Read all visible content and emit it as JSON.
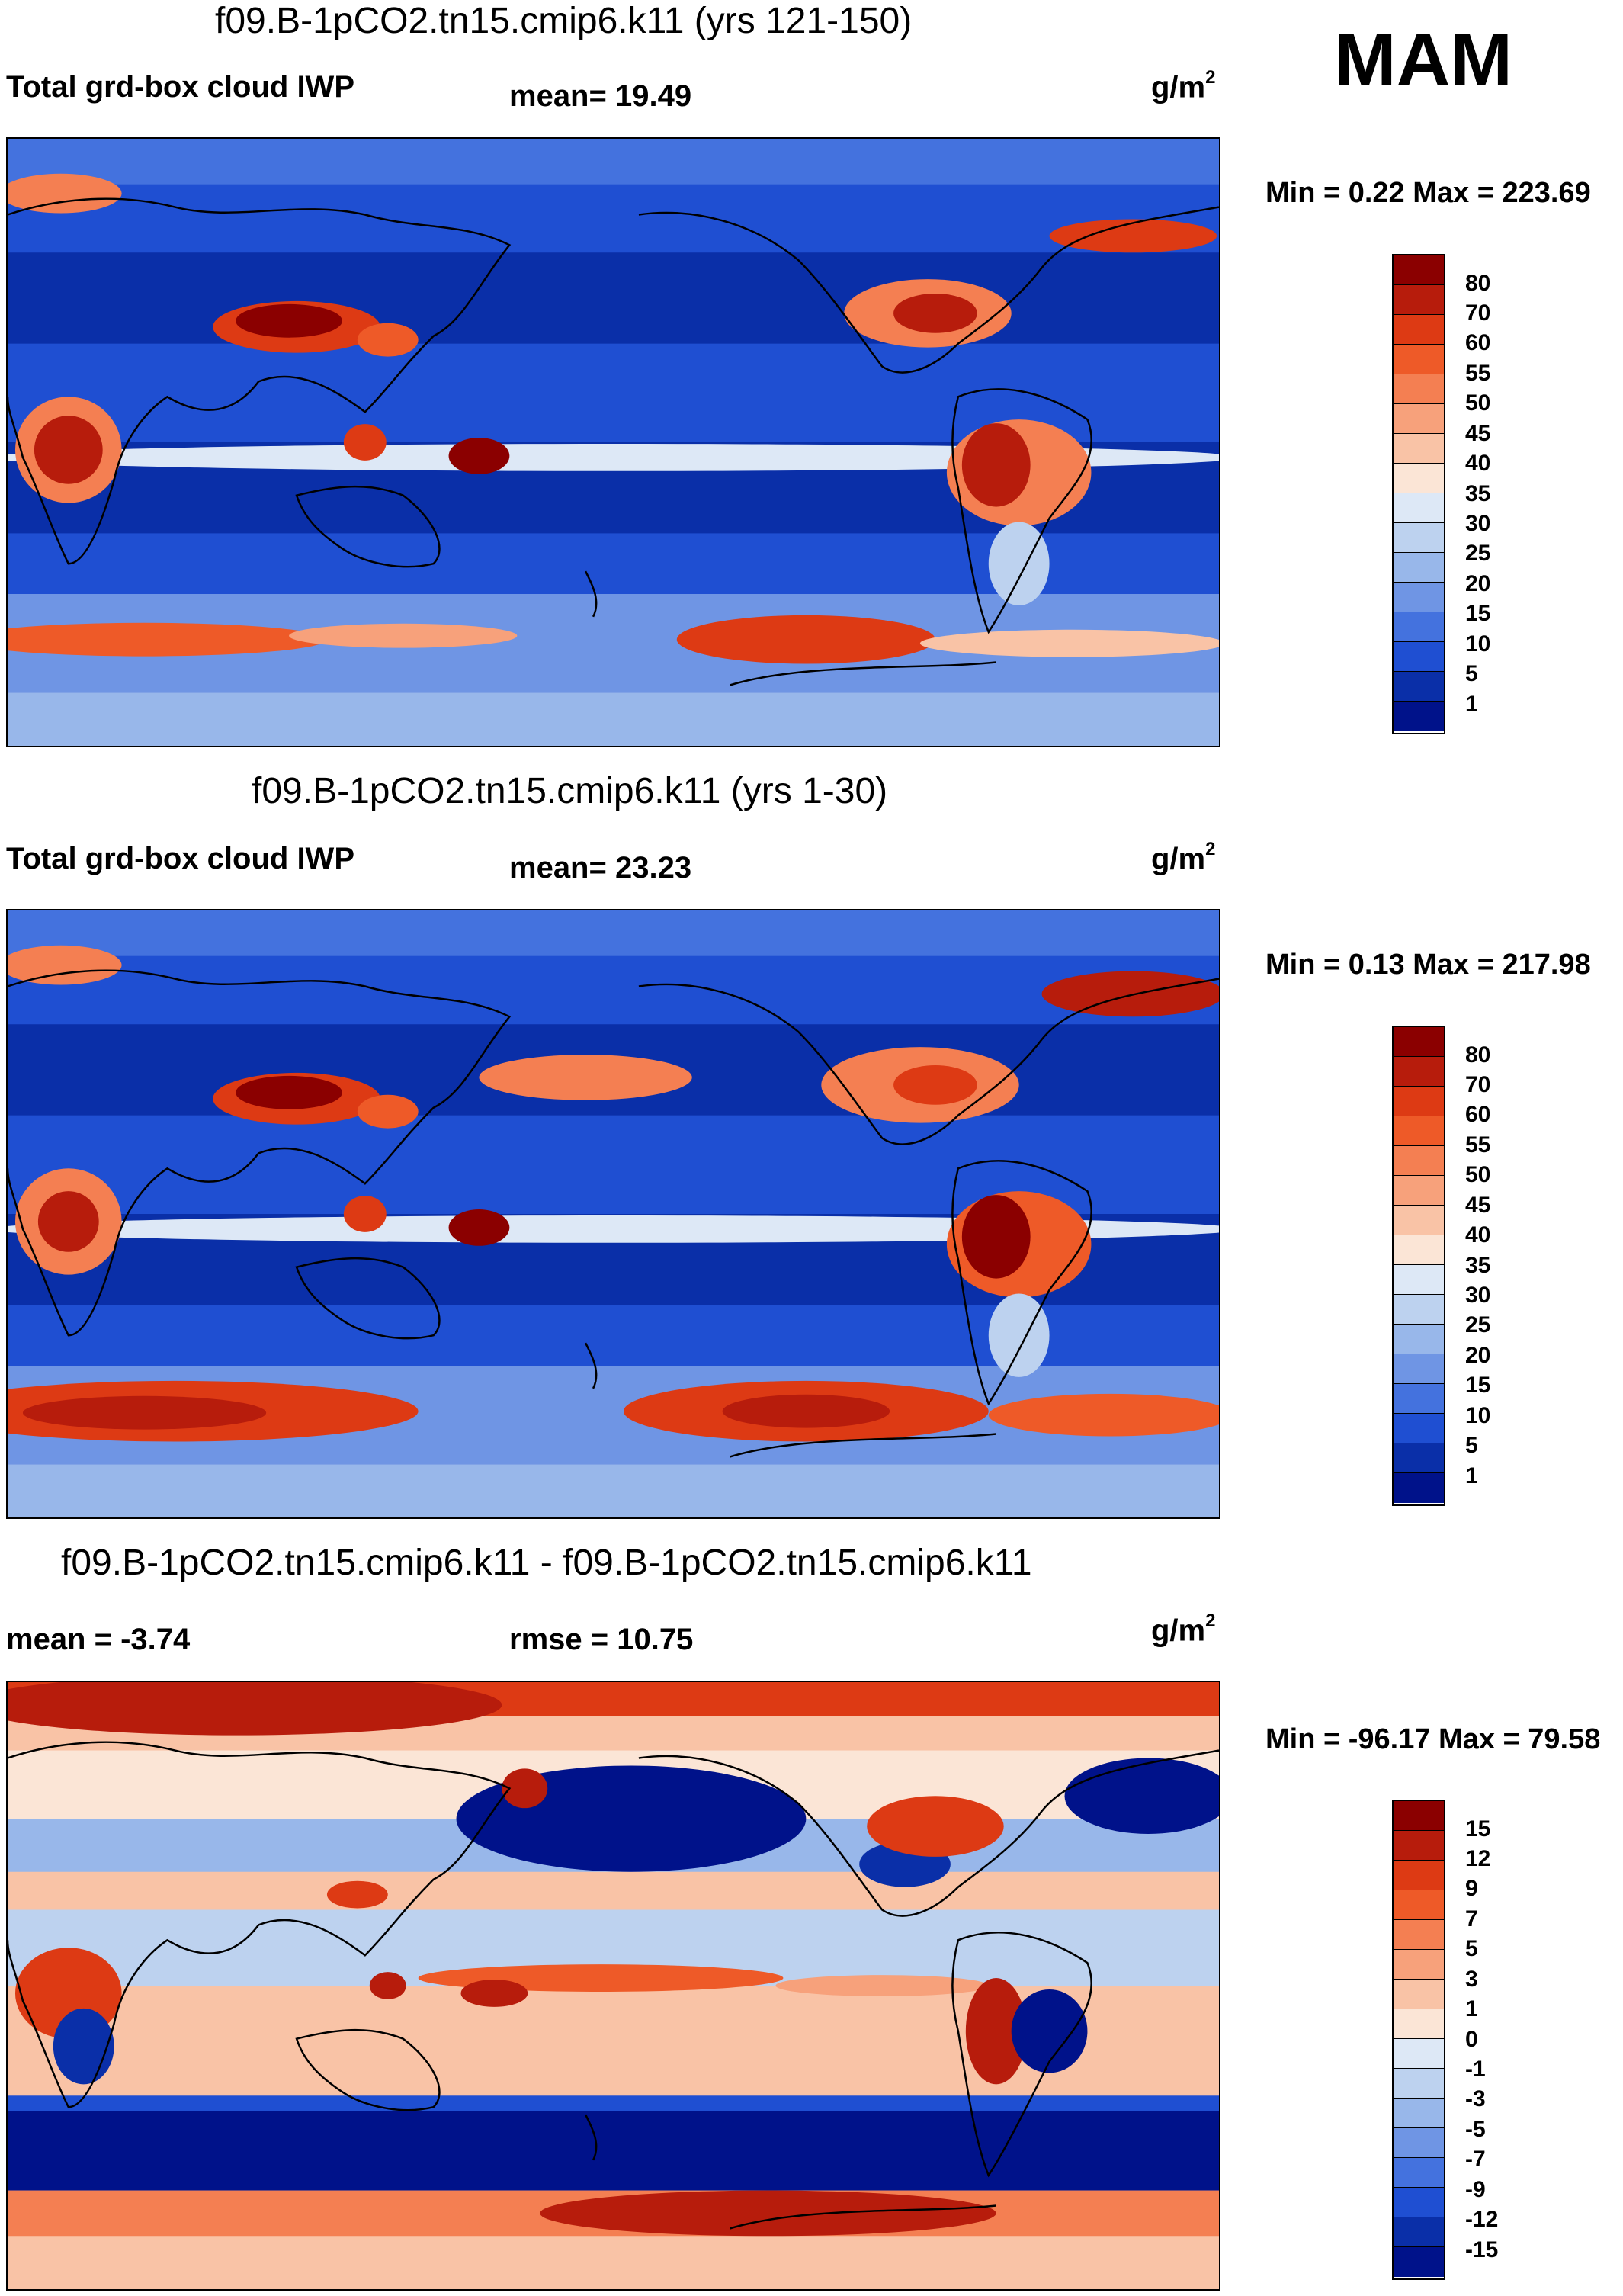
{
  "season": "MAM",
  "units_base": "g/m",
  "units_exp": "2",
  "panels": [
    {
      "title": "f09.B-1pCO2.tn15.cmip6.k11 (yrs 121-150)",
      "left_label": "Total grd-box cloud IWP",
      "center_label": "mean=  19.49",
      "minmax": "Min =   0.22 Max = 223.69",
      "colorbar": {
        "levels": [
          "80",
          "70",
          "60",
          "55",
          "50",
          "45",
          "40",
          "35",
          "30",
          "25",
          "20",
          "15",
          "10",
          "5",
          "1"
        ],
        "colors": [
          "#8b0000",
          "#b71c0c",
          "#dd3a14",
          "#ee5a28",
          "#f47f52",
          "#f7a17b",
          "#f9c3a6",
          "#fbe5d6",
          "#dde8f6",
          "#bdd2ef",
          "#98b7ea",
          "#6f95e4",
          "#4472de",
          "#1f4fd2",
          "#0a2fa8",
          "#00128a"
        ]
      }
    },
    {
      "title": "f09.B-1pCO2.tn15.cmip6.k11 (yrs 1-30)",
      "left_label": "Total grd-box cloud IWP",
      "center_label": "mean=  23.23",
      "minmax": "Min =   0.13 Max = 217.98",
      "colorbar": {
        "levels": [
          "80",
          "70",
          "60",
          "55",
          "50",
          "45",
          "40",
          "35",
          "30",
          "25",
          "20",
          "15",
          "10",
          "5",
          "1"
        ],
        "colors": [
          "#8b0000",
          "#b71c0c",
          "#dd3a14",
          "#ee5a28",
          "#f47f52",
          "#f7a17b",
          "#f9c3a6",
          "#fbe5d6",
          "#dde8f6",
          "#bdd2ef",
          "#98b7ea",
          "#6f95e4",
          "#4472de",
          "#1f4fd2",
          "#0a2fa8",
          "#00128a"
        ]
      }
    },
    {
      "title": "f09.B-1pCO2.tn15.cmip6.k11 - f09.B-1pCO2.tn15.cmip6.k11",
      "left_label": "mean =  -3.74",
      "center_label": "rmse =  10.75",
      "minmax": "Min = -96.17 Max =  79.58",
      "colorbar": {
        "levels": [
          "15",
          "12",
          "9",
          "7",
          "5",
          "3",
          "1",
          "0",
          "-1",
          "-3",
          "-5",
          "-7",
          "-9",
          "-12",
          "-15"
        ],
        "colors": [
          "#8b0000",
          "#b71c0c",
          "#dd3a14",
          "#ee5a28",
          "#f47f52",
          "#f7a17b",
          "#f9c3a6",
          "#fbe5d6",
          "#dde8f6",
          "#bdd2ef",
          "#98b7ea",
          "#6f95e4",
          "#4472de",
          "#1f4fd2",
          "#0a2fa8",
          "#00128a"
        ]
      }
    }
  ]
}
